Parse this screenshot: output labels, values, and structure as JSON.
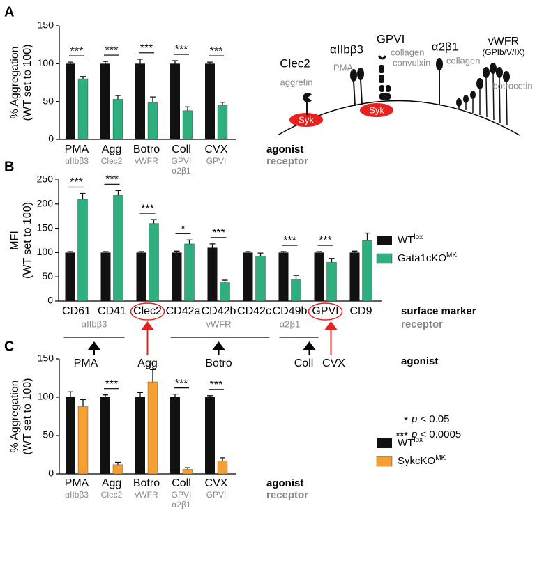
{
  "panel_labels": [
    "A",
    "B",
    "C"
  ],
  "chart_data": [
    {
      "type": "bar",
      "ylabel": [
        "% Aggregation",
        "(WT set to 100)"
      ],
      "categories": [
        "PMA",
        "Agg",
        "Botro",
        "Coll",
        "CVX"
      ],
      "category_sublabels": [
        "αIIbβ3",
        "Clec2",
        "vWFR",
        [
          "GPVI",
          "α2β1"
        ],
        "GPVI"
      ],
      "row_labels": [
        "agonist",
        "receptor"
      ],
      "series": [
        {
          "color": "#111111",
          "values": [
            100,
            100,
            100,
            100,
            100
          ],
          "errors": [
            2,
            3,
            6,
            4,
            2
          ]
        },
        {
          "color": "#2fae7e",
          "values": [
            80,
            53,
            49,
            38,
            45
          ],
          "errors": [
            3,
            5,
            7,
            5,
            4
          ]
        }
      ],
      "significance": [
        "***",
        "***",
        "***",
        "***",
        "***"
      ],
      "ylim": [
        0,
        150
      ],
      "yticks": [
        0,
        50,
        100,
        150
      ]
    },
    {
      "type": "bar",
      "ylabel": [
        "MFI",
        "(WT set to 100)"
      ],
      "categories": [
        "CD61",
        "CD41",
        "Clec2",
        "CD42a",
        "CD42b",
        "CD42c",
        "CD49b",
        "GPVI",
        "CD9"
      ],
      "row_labels": [
        "surface marker",
        "receptor",
        "agonist"
      ],
      "receptor_groups": [
        "αIIbβ3",
        "vWFR",
        "α2β1"
      ],
      "agonists": [
        "PMA",
        "Agg",
        "Botro",
        "Coll",
        "CVX"
      ],
      "series": [
        {
          "name": "WT",
          "name_superscript": "lox",
          "color": "#111111",
          "values": [
            100,
            100,
            100,
            100,
            110,
            100,
            100,
            100,
            100
          ],
          "errors": [
            2,
            2,
            2,
            3,
            8,
            2,
            2,
            2,
            3
          ]
        },
        {
          "name": "Gata1cKO",
          "name_superscript": "MK",
          "color": "#2fae7e",
          "values": [
            210,
            218,
            160,
            118,
            38,
            93,
            45,
            80,
            125
          ],
          "errors": [
            12,
            10,
            8,
            8,
            5,
            6,
            8,
            8,
            15
          ]
        }
      ],
      "significance": [
        "***",
        "***",
        "***",
        "*",
        "***",
        null,
        "***",
        "***",
        null
      ],
      "ylim": [
        0,
        250
      ],
      "yticks": [
        0,
        50,
        100,
        150,
        200,
        250
      ]
    },
    {
      "type": "bar",
      "ylabel": [
        "% Aggregation",
        "(WT set to 100)"
      ],
      "categories": [
        "PMA",
        "Agg",
        "Botro",
        "Coll",
        "CVX"
      ],
      "category_sublabels": [
        "αIIbβ3",
        "Clec2",
        "vWFR",
        [
          "GPVI",
          "α2β1"
        ],
        "GPVI"
      ],
      "row_labels": [
        "agonist",
        "receptor"
      ],
      "series": [
        {
          "name": "WT",
          "name_superscript": "lox",
          "color": "#111111",
          "values": [
            100,
            100,
            100,
            100,
            100
          ],
          "errors": [
            7,
            3,
            6,
            4,
            2
          ]
        },
        {
          "name": "SykcKO",
          "name_superscript": "MK",
          "color": "#f5a033",
          "values": [
            88,
            12,
            120,
            6,
            17
          ],
          "errors": [
            9,
            3,
            16,
            2,
            4
          ]
        }
      ],
      "significance": [
        null,
        "***",
        null,
        "***",
        "***"
      ],
      "ylim": [
        0,
        150
      ],
      "yticks": [
        0,
        50,
        100,
        150
      ]
    }
  ],
  "p_notes": [
    {
      "stars": "*",
      "p": "p",
      "text": "< 0.05"
    },
    {
      "stars": "***",
      "p": "p",
      "text": "< 0.0005"
    }
  ],
  "diagram": {
    "clec2": "Clec2",
    "aggretin": "aggretin",
    "aiib": "αIIbβ3",
    "pma": "PMA",
    "gpvi": "GPVI",
    "collagen1": "collagen",
    "convulxin": "convulxin",
    "a2b1": "α2β1",
    "collagen2": "collagen",
    "vwfr": "vWFR",
    "gpib": "(GPIb/V/IX)",
    "botrocetin": "botrocetin",
    "syk1": "Syk",
    "syk2": "Syk"
  }
}
